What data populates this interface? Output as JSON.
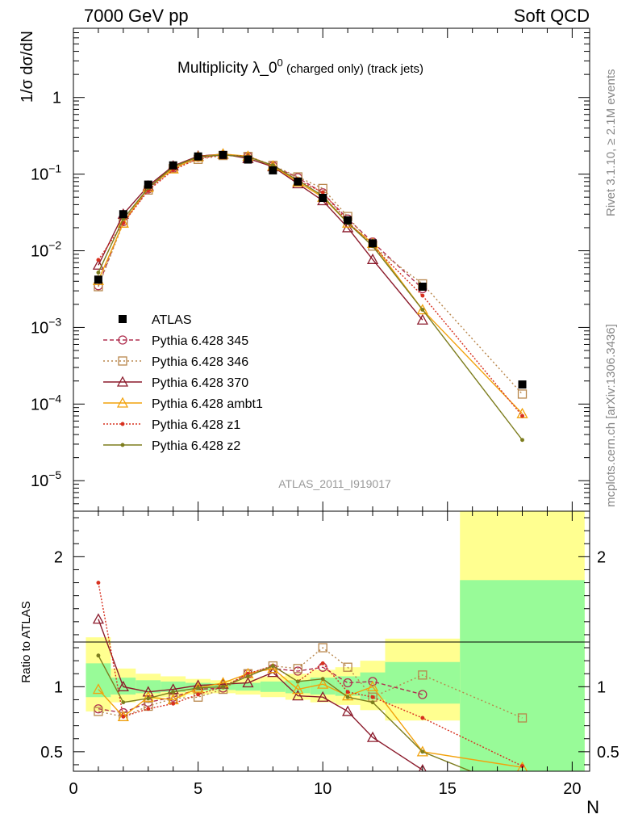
{
  "header": {
    "left": "7000 GeV pp",
    "right": "Soft QCD"
  },
  "side_labels": {
    "top": "Rivet 3.1.10, ≥ 2.1M events",
    "bottom": "mcplots.cern.ch [arXiv:1306.3436]"
  },
  "chart_data": [
    {
      "type": "line",
      "panel": "main",
      "title": "Multiplicity λ_0",
      "title_sup": "0",
      "title_suffix": " (charged only) (track jets)",
      "ylabel": "1/σ dσ/dN",
      "yscale": "log",
      "ylim": [
        4e-06,
        8
      ],
      "xlim": [
        0,
        20.7
      ],
      "y_ticks": [
        {
          "v": 1e-05,
          "base": "10",
          "exp": "−5"
        },
        {
          "v": 0.0001,
          "base": "10",
          "exp": "−4"
        },
        {
          "v": 0.001,
          "base": "10",
          "exp": "−3"
        },
        {
          "v": 0.01,
          "base": "10",
          "exp": "−2"
        },
        {
          "v": 0.1,
          "base": "10",
          "exp": "−1"
        },
        {
          "v": 1,
          "base": "1",
          "exp": ""
        }
      ],
      "watermark": "ATLAS_2011_I919017",
      "legend_position": "center-left",
      "x": [
        1,
        2,
        3,
        4,
        5,
        6,
        7,
        8,
        9,
        10,
        11,
        12,
        14,
        18
      ],
      "data": {
        "name": "ATLAS",
        "values": [
          0.0042,
          0.03,
          0.073,
          0.13,
          0.17,
          0.178,
          0.155,
          0.112,
          0.08,
          0.049,
          0.025,
          0.0125,
          0.0034,
          0.00018
        ],
        "color": "#000000"
      },
      "series": [
        {
          "name": "Pythia 6.428 345",
          "color": "#b03050",
          "marker": "circle",
          "dash": "5,3",
          "values": [
            0.0035,
            0.024,
            0.064,
            0.119,
            0.166,
            0.177,
            0.17,
            0.128,
            0.09,
            0.057,
            0.026,
            0.013,
            0.0032,
            null
          ]
        },
        {
          "name": "Pythia 6.428 346",
          "color": "#b8864b",
          "marker": "square",
          "dash": "2,3",
          "values": [
            0.0034,
            0.023,
            0.062,
            0.118,
            0.156,
            0.175,
            0.17,
            0.13,
            0.092,
            0.065,
            0.028,
            0.0115,
            0.0037,
            0.000135
          ]
        },
        {
          "name": "Pythia 6.428 370",
          "color": "#8b1a2b",
          "marker": "triangle",
          "dash": "",
          "values": [
            0.0065,
            0.03,
            0.07,
            0.128,
            0.172,
            0.182,
            0.16,
            0.125,
            0.075,
            0.045,
            0.02,
            0.0077,
            0.00125,
            null
          ]
        },
        {
          "name": "Pythia 6.428 ambt1",
          "color": "#f2a20c",
          "marker": "triangle",
          "dash": "",
          "values": [
            0.0041,
            0.023,
            0.067,
            0.117,
            0.168,
            0.183,
            0.171,
            0.128,
            0.079,
            0.05,
            0.023,
            0.0125,
            0.0017,
            7.5e-05
          ]
        },
        {
          "name": "Pythia 6.428 z1",
          "color": "#d7301f",
          "marker": "dot",
          "dash": "2,2",
          "values": [
            0.0076,
            0.023,
            0.061,
            0.113,
            0.16,
            0.178,
            0.171,
            0.13,
            0.083,
            0.058,
            0.024,
            0.0115,
            0.0026,
            7e-05
          ]
        },
        {
          "name": "Pythia 6.428 z2",
          "color": "#7d7d1e",
          "marker": "dot",
          "dash": "",
          "values": [
            0.0052,
            0.026,
            0.066,
            0.125,
            0.168,
            0.178,
            0.168,
            0.13,
            0.083,
            0.052,
            0.023,
            0.0115,
            0.0017,
            3.4e-05
          ]
        }
      ]
    },
    {
      "type": "line",
      "panel": "ratio",
      "ylabel": "Ratio to ATLAS",
      "ylim": [
        0.35,
        2.35
      ],
      "xlim": [
        0,
        20.7
      ],
      "xlabel": "N",
      "x_ticks": [
        "0",
        "5",
        "10",
        "15",
        "20"
      ],
      "y_ticks": [
        "0.5",
        "1",
        "2"
      ],
      "bands": [
        {
          "x0": 0.5,
          "x1": 1.5,
          "y1": [
            0.81,
            1.38
          ],
          "y2": [
            0.92,
            1.18
          ]
        },
        {
          "x0": 1.5,
          "x1": 2.5,
          "y1": [
            0.88,
            1.14
          ],
          "y2": [
            0.94,
            1.07
          ]
        },
        {
          "x0": 2.5,
          "x1": 3.5,
          "y1": [
            0.9,
            1.1
          ],
          "y2": [
            0.95,
            1.05
          ]
        },
        {
          "x0": 3.5,
          "x1": 4.5,
          "y1": [
            0.92,
            1.08
          ],
          "y2": [
            0.96,
            1.04
          ]
        },
        {
          "x0": 4.5,
          "x1": 5.5,
          "y1": [
            0.94,
            1.06
          ],
          "y2": [
            0.97,
            1.03
          ]
        },
        {
          "x0": 5.5,
          "x1": 6.5,
          "y1": [
            0.95,
            1.05
          ],
          "y2": [
            0.975,
            1.025
          ]
        },
        {
          "x0": 6.5,
          "x1": 7.5,
          "y1": [
            0.94,
            1.06
          ],
          "y2": [
            0.97,
            1.03
          ]
        },
        {
          "x0": 7.5,
          "x1": 8.5,
          "y1": [
            0.92,
            1.08
          ],
          "y2": [
            0.96,
            1.04
          ]
        },
        {
          "x0": 8.5,
          "x1": 9.5,
          "y1": [
            0.9,
            1.1
          ],
          "y2": [
            0.95,
            1.05
          ]
        },
        {
          "x0": 9.5,
          "x1": 10.5,
          "y1": [
            0.88,
            1.13
          ],
          "y2": [
            0.94,
            1.07
          ]
        },
        {
          "x0": 10.5,
          "x1": 11.5,
          "y1": [
            0.86,
            1.15
          ],
          "y2": [
            0.93,
            1.08
          ]
        },
        {
          "x0": 11.5,
          "x1": 12.5,
          "y1": [
            0.82,
            1.2
          ],
          "y2": [
            0.9,
            1.11
          ]
        },
        {
          "x0": 12.5,
          "x1": 15.5,
          "y1": [
            0.74,
            1.37
          ],
          "y2": [
            0.87,
            1.19
          ]
        },
        {
          "x0": 15.5,
          "x1": 20.5,
          "y1": [
            0.35,
            2.35
          ],
          "y2": [
            0.35,
            1.82
          ]
        }
      ],
      "series": [
        {
          "name": "Pythia 6.428 345",
          "values": [
            0.83,
            0.8,
            0.88,
            0.92,
            0.98,
            0.99,
            1.1,
            1.14,
            1.12,
            1.15,
            1.03,
            1.04,
            0.94,
            null
          ]
        },
        {
          "name": "Pythia 6.428 346",
          "values": [
            0.81,
            0.77,
            0.85,
            0.91,
            0.92,
            0.98,
            1.1,
            1.16,
            1.14,
            1.3,
            1.15,
            0.92,
            1.09,
            0.76
          ]
        },
        {
          "name": "Pythia 6.428 370",
          "values": [
            1.52,
            1.0,
            0.96,
            0.98,
            1.01,
            1.02,
            1.03,
            1.11,
            0.93,
            0.92,
            0.81,
            0.61,
            0.36,
            null
          ]
        },
        {
          "name": "Pythia 6.428 ambt1",
          "values": [
            0.98,
            0.77,
            0.92,
            0.9,
            0.99,
            1.03,
            1.1,
            1.14,
            0.98,
            1.02,
            0.93,
            1.0,
            0.5,
            0.38
          ]
        },
        {
          "name": "Pythia 6.428 z1",
          "values": [
            1.8,
            0.77,
            0.83,
            0.87,
            0.94,
            1.0,
            1.1,
            1.16,
            1.04,
            1.18,
            0.96,
            0.92,
            0.76,
            0.39
          ]
        },
        {
          "name": "Pythia 6.428 z2",
          "values": [
            1.24,
            0.88,
            0.91,
            0.96,
            0.99,
            1.0,
            1.08,
            1.16,
            1.04,
            1.06,
            0.92,
            0.88,
            0.5,
            0.19
          ]
        }
      ]
    }
  ]
}
